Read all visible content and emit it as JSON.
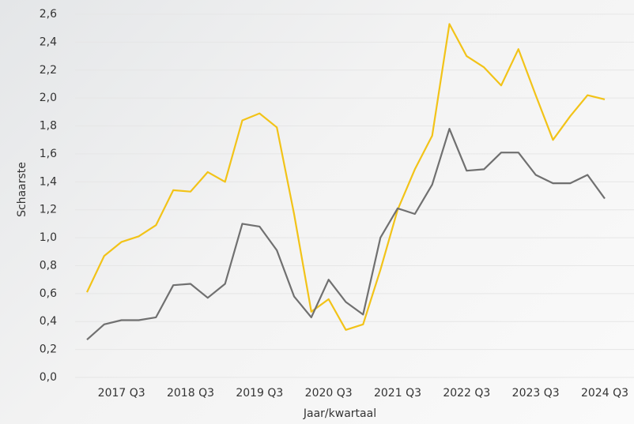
{
  "chart_data": {
    "type": "line",
    "x_label": "Jaar/kwartaal",
    "y_label": "Schaarste",
    "categories": [
      null,
      null,
      "2017 Q3",
      null,
      null,
      null,
      "2018 Q3",
      null,
      null,
      null,
      "2019 Q3",
      null,
      null,
      null,
      "2020 Q3",
      null,
      null,
      null,
      "2021 Q3",
      null,
      null,
      null,
      "2022 Q3",
      null,
      null,
      null,
      "2023 Q3",
      null,
      null,
      null,
      "2024 Q3"
    ],
    "series": [
      {
        "color": "#f2c318",
        "values": [
          0.61,
          0.87,
          0.97,
          1.01,
          1.09,
          1.34,
          1.33,
          1.47,
          1.4,
          1.84,
          1.89,
          1.79,
          1.17,
          0.47,
          0.56,
          0.34,
          0.38,
          0.77,
          1.2,
          1.49,
          1.73,
          2.53,
          2.3,
          2.22,
          2.09,
          2.35,
          2.02,
          1.7,
          1.87,
          2.02,
          1.99
        ]
      },
      {
        "color": "#707070",
        "values": [
          0.27,
          0.38,
          0.41,
          0.41,
          0.43,
          0.66,
          0.67,
          0.57,
          0.67,
          1.1,
          1.08,
          0.91,
          0.58,
          0.43,
          0.7,
          0.54,
          0.45,
          1.0,
          1.21,
          1.17,
          1.38,
          1.78,
          1.48,
          1.49,
          1.61,
          1.61,
          1.45,
          1.39,
          1.39,
          1.45,
          1.28
        ]
      }
    ],
    "ylim": [
      0,
      2.6
    ],
    "yticks": [
      {
        "value": 0,
        "label": "0,0"
      },
      {
        "value": 0.2,
        "label": "0,2"
      },
      {
        "value": 0.4,
        "label": "0,4"
      },
      {
        "value": 0.6,
        "label": "0,6"
      },
      {
        "value": 0.8,
        "label": "0,8"
      },
      {
        "value": 1.0,
        "label": "1,0"
      },
      {
        "value": 1.2,
        "label": "1,2"
      },
      {
        "value": 1.4,
        "label": "1,4"
      },
      {
        "value": 1.6,
        "label": "1,6"
      },
      {
        "value": 1.8,
        "label": "1,8"
      },
      {
        "value": 2.0,
        "label": "2,0"
      },
      {
        "value": 2.2,
        "label": "2,2"
      },
      {
        "value": 2.4,
        "label": "2,4"
      },
      {
        "value": 2.6,
        "label": "2,6"
      }
    ],
    "grid": true
  }
}
